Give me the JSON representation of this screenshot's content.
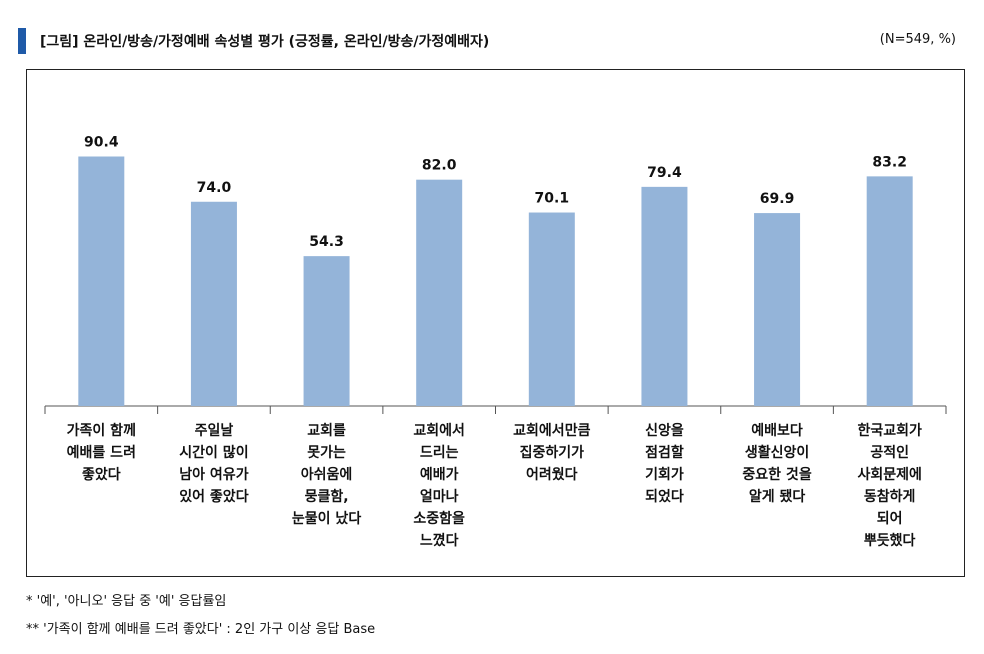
{
  "header": {
    "title": "[그림] 온라인/방송/가정예배 속성별 평가 (긍정률, 온라인/방송/가정예배자)",
    "base": "(N=549, %)"
  },
  "colors": {
    "bar": "#94b4d9",
    "accent": "#1f5aa8",
    "axis": "#555555"
  },
  "chart_data": {
    "type": "bar",
    "categories": [
      [
        "가족이 함께",
        "예배를 드려",
        "좋았다"
      ],
      [
        "주일날",
        "시간이 많이",
        "남아 여유가",
        "있어 좋았다"
      ],
      [
        "교회를",
        "못가는",
        "아쉬움에",
        "뭉클함,",
        "눈물이 났다"
      ],
      [
        "교회에서",
        "드리는",
        "예배가",
        "얼마나",
        "소중함을",
        "느꼈다"
      ],
      [
        "교회에서만큼",
        "집중하기가",
        "어려웠다"
      ],
      [
        "신앙을",
        "점검할",
        "기회가",
        "되었다"
      ],
      [
        "예배보다",
        "생활신앙이",
        "중요한 것을",
        "알게 됐다"
      ],
      [
        "한국교회가",
        "공적인",
        "사회문제에",
        "동참하게",
        "되어",
        "뿌듯했다"
      ]
    ],
    "values": [
      90.4,
      74.0,
      54.3,
      82.0,
      70.1,
      79.4,
      69.9,
      83.2
    ],
    "value_labels": [
      "90.4",
      "74.0",
      "54.3",
      "82.0",
      "70.1",
      "79.4",
      "69.9",
      "83.2"
    ],
    "ylim": [
      0,
      100
    ],
    "grid": false
  },
  "notes": {
    "note1": "* '예', '아니오' 응답 중 '예' 응답률임",
    "note2": "** '가족이 함께 예배를 드려 좋았다' : 2인 가구 이상 응답 Base"
  }
}
